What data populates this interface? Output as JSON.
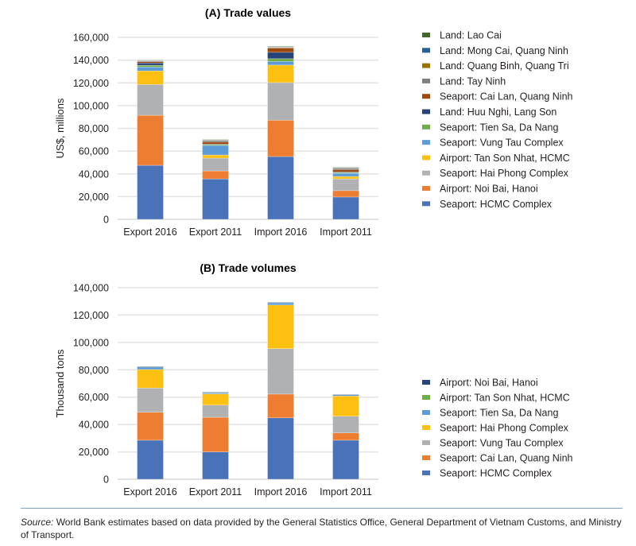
{
  "chart_data": [
    {
      "type": "bar",
      "stacked": true,
      "title": "(A) Trade values",
      "xlabel": "",
      "ylabel": "US$, millions",
      "ylim": [
        0,
        160000
      ],
      "yticks": [
        0,
        20000,
        40000,
        60000,
        80000,
        100000,
        120000,
        140000,
        160000
      ],
      "ytick_labels": [
        "0",
        "20,000",
        "40,000",
        "60,000",
        "80,000",
        "100,000",
        "120,000",
        "140,000",
        "160,000"
      ],
      "grid": true,
      "legend_position": "right",
      "categories": [
        "Export 2016",
        "Export 2011",
        "Import 2016",
        "Import 2011"
      ],
      "series": [
        {
          "name": "Seaport: HCMC Complex",
          "color": "#4a72b8",
          "values": [
            47500,
            35600,
            55200,
            19600
          ]
        },
        {
          "name": "Airport: Noi Bai, Hanoi",
          "color": "#ed7d31",
          "values": [
            44000,
            7000,
            32000,
            5600
          ]
        },
        {
          "name": "Seaport: Hai Phong Complex",
          "color": "#b0b1b3",
          "values": [
            27000,
            11200,
            33000,
            10400
          ]
        },
        {
          "name": "Airport: Tan Son Nhat, HCMC",
          "color": "#fdc010",
          "values": [
            12000,
            2800,
            15400,
            2100
          ]
        },
        {
          "name": "Seaport: Vung Tau Complex",
          "color": "#5c9bd5",
          "values": [
            3500,
            8400,
            3200,
            2800
          ]
        },
        {
          "name": "Seaport: Tien Sa, Da Nang",
          "color": "#70ad47",
          "values": [
            1500,
            800,
            2400,
            700
          ]
        },
        {
          "name": "Land: Huu Nghi, Lang Son",
          "color": "#264478",
          "values": [
            2000,
            300,
            5600,
            500
          ]
        },
        {
          "name": "Seaport: Cai Lan, Quang Ninh",
          "color": "#9e480e",
          "values": [
            1000,
            2000,
            3800,
            2000
          ]
        },
        {
          "name": "Land: Tay Ninh",
          "color": "#7f7f7f",
          "values": [
            800,
            1400,
            700,
            1400
          ]
        },
        {
          "name": "Land: Quang Binh, Quang Tri",
          "color": "#997300",
          "values": [
            300,
            200,
            300,
            200
          ]
        },
        {
          "name": "Land: Mong Cai, Quang Ninh",
          "color": "#255e91",
          "values": [
            300,
            200,
            300,
            200
          ]
        },
        {
          "name": "Land: Lao Cai",
          "color": "#43682b",
          "values": [
            400,
            300,
            400,
            300
          ]
        }
      ]
    },
    {
      "type": "bar",
      "stacked": true,
      "title": "(B) Trade volumes",
      "xlabel": "",
      "ylabel": "Thousand tons",
      "ylim": [
        0,
        140000
      ],
      "yticks": [
        0,
        20000,
        40000,
        60000,
        80000,
        100000,
        120000,
        140000
      ],
      "ytick_labels": [
        "0",
        "20,000",
        "40,000",
        "60,000",
        "80,000",
        "100,000",
        "120,000",
        "140,000"
      ],
      "grid": true,
      "legend_position": "right",
      "categories": [
        "Export 2016",
        "Export 2011",
        "Import 2016",
        "Import 2011"
      ],
      "series": [
        {
          "name": "Seaport: HCMC Complex",
          "color": "#4a72b8",
          "values": [
            28500,
            20000,
            44800,
            28500
          ]
        },
        {
          "name": "Seaport: Cai Lan, Quang Ninh",
          "color": "#ed7d31",
          "values": [
            20500,
            25300,
            17400,
            5300
          ]
        },
        {
          "name": "Seaport: Vung Tau Complex",
          "color": "#b0b1b3",
          "values": [
            17700,
            8900,
            33300,
            12300
          ]
        },
        {
          "name": "Seaport: Hai Phong Complex",
          "color": "#fdc010",
          "values": [
            13500,
            8200,
            31800,
            14700
          ]
        },
        {
          "name": "Seaport: Tien Sa, Da Nang",
          "color": "#5c9bd5",
          "values": [
            1800,
            1000,
            1700,
            1000
          ]
        },
        {
          "name": "Airport: Tan Son Nhat, HCMC",
          "color": "#70ad47",
          "values": [
            300,
            200,
            300,
            200
          ]
        },
        {
          "name": "Airport: Noi Bai, Hanoi",
          "color": "#264478",
          "values": [
            200,
            100,
            200,
            100
          ]
        }
      ]
    }
  ],
  "source": {
    "label": "Source:",
    "text": " World Bank estimates based on data provided by the General Statistics Office, General Department of Vietnam Customs, and Ministry of Transport."
  }
}
